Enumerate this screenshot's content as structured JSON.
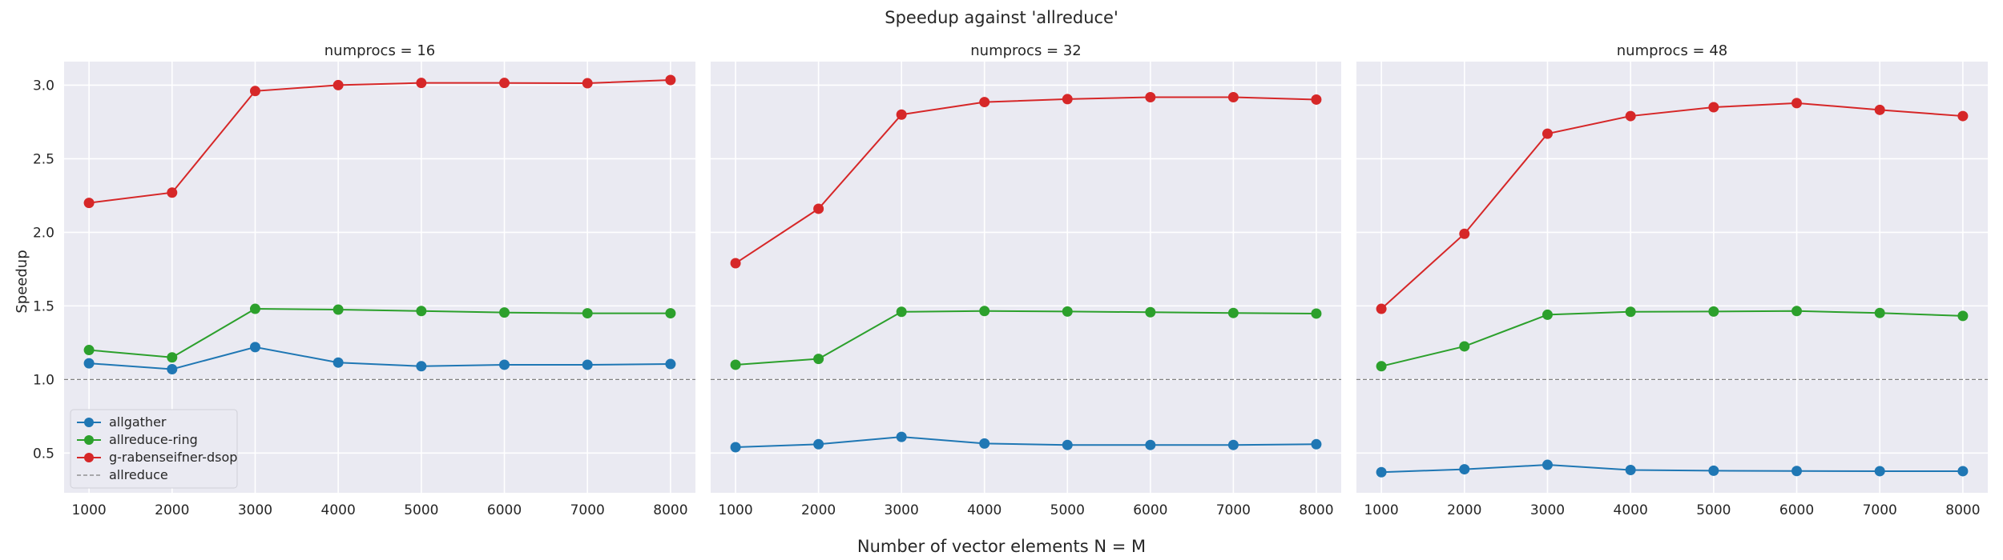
{
  "chart_data": {
    "type": "line",
    "title": "Speedup against 'allreduce'",
    "xlabel": "Number of vector elements N = M",
    "ylabel": "Speedup",
    "x": [
      1000,
      2000,
      3000,
      4000,
      5000,
      6000,
      7000,
      8000
    ],
    "xticks": [
      "1000",
      "2000",
      "3000",
      "4000",
      "5000",
      "6000",
      "7000",
      "8000"
    ],
    "yticks": [
      "0.5",
      "1.0",
      "1.5",
      "2.0",
      "2.5",
      "3.0"
    ],
    "ylim": [
      0.23,
      3.16
    ],
    "xlim": [
      700,
      8300
    ],
    "grid": true,
    "legend_position": "lower-left",
    "reference_line": {
      "name": "allreduce",
      "value": 1.0,
      "color": "#7f7f7f"
    },
    "panels": [
      {
        "title": "numprocs = 16",
        "series": [
          {
            "name": "allgather",
            "color": "#1f77b4",
            "values": [
              1.11,
              1.07,
              1.22,
              1.115,
              1.09,
              1.1,
              1.1,
              1.105
            ]
          },
          {
            "name": "allreduce-ring",
            "color": "#2ca02c",
            "values": [
              1.2,
              1.15,
              1.48,
              1.475,
              1.465,
              1.455,
              1.45,
              1.45
            ]
          },
          {
            "name": "g-rabenseifner-dsop",
            "color": "#d62728",
            "values": [
              2.2,
              2.27,
              2.96,
              3.0,
              3.015,
              3.015,
              3.013,
              3.035
            ]
          }
        ]
      },
      {
        "title": "numprocs = 32",
        "series": [
          {
            "name": "allgather",
            "color": "#1f77b4",
            "values": [
              0.54,
              0.56,
              0.61,
              0.565,
              0.555,
              0.555,
              0.555,
              0.56
            ]
          },
          {
            "name": "allreduce-ring",
            "color": "#2ca02c",
            "values": [
              1.1,
              1.14,
              1.46,
              1.465,
              1.462,
              1.457,
              1.452,
              1.448
            ]
          },
          {
            "name": "g-rabenseifner-dsop",
            "color": "#d62728",
            "values": [
              1.79,
              2.16,
              2.8,
              2.885,
              2.905,
              2.918,
              2.918,
              2.902
            ]
          }
        ]
      },
      {
        "title": "numprocs = 48",
        "series": [
          {
            "name": "allgather",
            "color": "#1f77b4",
            "values": [
              0.37,
              0.39,
              0.42,
              0.385,
              0.38,
              0.378,
              0.377,
              0.377
            ]
          },
          {
            "name": "allreduce-ring",
            "color": "#2ca02c",
            "values": [
              1.09,
              1.225,
              1.44,
              1.46,
              1.462,
              1.465,
              1.452,
              1.432
            ]
          },
          {
            "name": "g-rabenseifner-dsop",
            "color": "#d62728",
            "values": [
              1.48,
              1.99,
              2.67,
              2.79,
              2.85,
              2.878,
              2.832,
              2.79
            ]
          }
        ]
      }
    ]
  }
}
